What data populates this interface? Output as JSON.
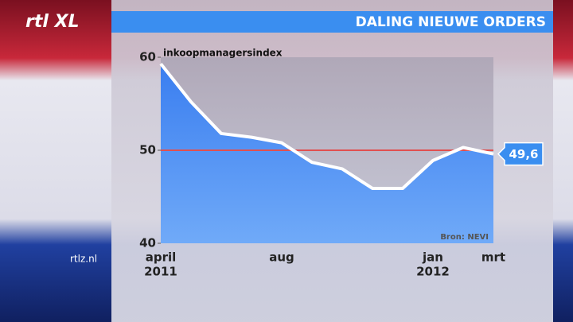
{
  "logo": "rtl XL",
  "site": "rtlz.nl",
  "chart_data": {
    "type": "area",
    "title": "DALING NIEUWE ORDERS",
    "ylabel": "inkoopmanagersindex",
    "source": "Bron: NEVI",
    "categories": [
      "april",
      null,
      null,
      null,
      "aug",
      null,
      null,
      null,
      null,
      "jan",
      null,
      "mrt"
    ],
    "category_years": [
      "2011",
      null,
      null,
      null,
      null,
      null,
      null,
      null,
      null,
      "2012",
      null,
      null
    ],
    "values": [
      59.3,
      55.2,
      51.8,
      51.4,
      50.8,
      48.7,
      48.0,
      45.9,
      45.9,
      48.9,
      50.3,
      49.6
    ],
    "value_labels": [
      null,
      null,
      null,
      null,
      null,
      null,
      null,
      null,
      null,
      null,
      null,
      "49,6"
    ],
    "color": "#3d8cf0",
    "line_color": "#ffffff",
    "reference_line": 50,
    "reference_color": "#e05050",
    "ylim": [
      40,
      60
    ],
    "yticks": [
      40,
      50,
      60
    ]
  }
}
